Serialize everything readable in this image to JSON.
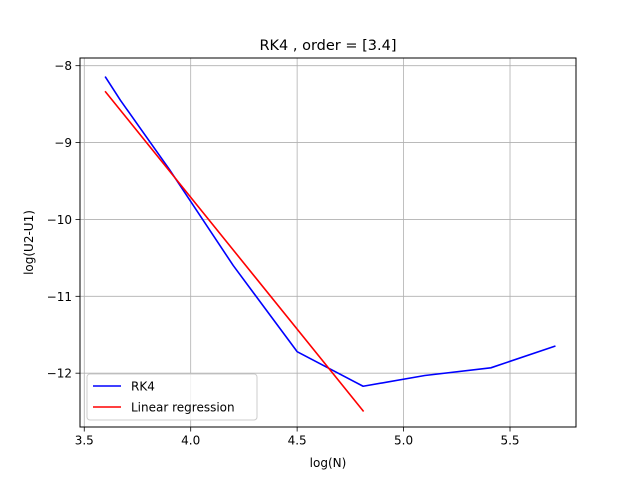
{
  "chart_data": {
    "type": "line",
    "title": "RK4 , order = [3.4]",
    "xlabel": "log(N)",
    "ylabel": "log(U2-U1)",
    "xlim": [
      3.48,
      5.81
    ],
    "ylim": [
      -12.7,
      -7.9
    ],
    "grid": true,
    "legend_position": "lower-left",
    "xticks": [
      3.5,
      4.0,
      4.5,
      5.0,
      5.5
    ],
    "xtick_labels": [
      "3.5",
      "4.0",
      "4.5",
      "5.0",
      "5.5"
    ],
    "yticks": [
      -8,
      -9,
      -10,
      -11,
      -12
    ],
    "ytick_labels": [
      "−8",
      "−9",
      "−10",
      "−11",
      "−12"
    ],
    "series": [
      {
        "name": "RK4",
        "color": "#0000ff",
        "x": [
          3.6,
          3.67,
          3.9,
          4.2,
          4.5,
          4.81,
          5.1,
          5.41,
          5.71
        ],
        "y": [
          -8.15,
          -8.45,
          -9.35,
          -10.6,
          -11.72,
          -12.17,
          -12.03,
          -11.93,
          -11.65
        ]
      },
      {
        "name": "Linear regression",
        "color": "#ff0000",
        "x": [
          3.6,
          4.81
        ],
        "y": [
          -8.34,
          -12.49
        ]
      }
    ]
  }
}
